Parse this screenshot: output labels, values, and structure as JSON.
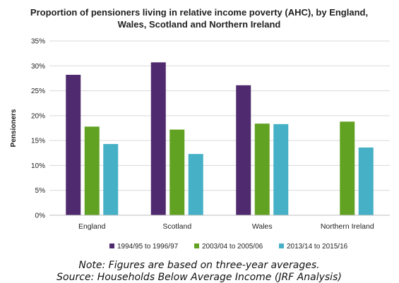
{
  "chart_data": {
    "type": "bar",
    "title_lines": [
      "Proportion of pensioners living in relative income poverty (AHC), by England,",
      "Wales, Scotland and Northern Ireland"
    ],
    "xlabel": "",
    "ylabel": "Pensioners",
    "ylim": [
      0,
      35
    ],
    "yticks": [
      0,
      5,
      10,
      15,
      20,
      25,
      30,
      35
    ],
    "ytick_format": "percent",
    "grid": "horizontal",
    "categories": [
      "England",
      "Scotland",
      "Wales",
      "Northern Ireland"
    ],
    "legend_position": "bottom",
    "series": [
      {
        "name": "1994/95 to 1996/97",
        "color": "#4f2a6e",
        "values": [
          28.2,
          30.7,
          26.1,
          null
        ]
      },
      {
        "name": "2003/04 to 2005/06",
        "color": "#62a223",
        "values": [
          17.8,
          17.2,
          18.4,
          18.8
        ]
      },
      {
        "name": "2013/14 to 2015/16",
        "color": "#45b0c6",
        "values": [
          14.3,
          12.3,
          18.3,
          13.6
        ]
      }
    ]
  },
  "footnotes": [
    "Note: Figures are based on three-year averages.",
    "Source: Households Below Average Income (JRF Analysis)"
  ]
}
